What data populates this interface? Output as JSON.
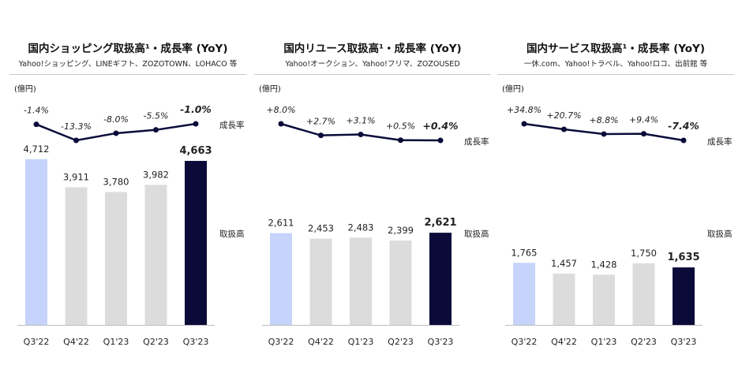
{
  "colors": {
    "bar_first": "#c6d3fb",
    "bar_mid": "#dcdcdc",
    "bar_last": "#0b0b3a",
    "line": "#0b0b3a",
    "axis": "#bdbdbd"
  },
  "chart_data": [
    {
      "type": "bar+line",
      "title": "国内ショッピング取扱高¹・成長率 (YoY)",
      "subtitle": "Yahoo!ショッピング、LINEギフト、ZOZOTOWN、LOHACO 等",
      "unit_label": "(億円)",
      "categories": [
        "Q3'22",
        "Q4'22",
        "Q1'23",
        "Q2'23",
        "Q3'23"
      ],
      "bar_series": {
        "name": "取扱高",
        "values": [
          4712,
          3911,
          3780,
          3982,
          4663
        ],
        "labels": [
          "4,712",
          "3,911",
          "3,780",
          "3,982",
          "4,663"
        ]
      },
      "line_series": {
        "name": "成長率",
        "values": [
          -1.4,
          -13.3,
          -8.0,
          -5.5,
          -1.0
        ],
        "labels": [
          "-1.4%",
          "-13.3%",
          "-8.0%",
          "-5.5%",
          "-1.0%"
        ]
      }
    },
    {
      "type": "bar+line",
      "title": "国内リユース取扱高¹・成長率 (YoY)",
      "subtitle": "Yahoo!オークション、Yahoo!フリマ、ZOZOUSED",
      "unit_label": "(億円)",
      "categories": [
        "Q3'22",
        "Q4'22",
        "Q1'23",
        "Q2'23",
        "Q3'23"
      ],
      "bar_series": {
        "name": "取扱高",
        "values": [
          2611,
          2453,
          2483,
          2399,
          2621
        ],
        "labels": [
          "2,611",
          "2,453",
          "2,483",
          "2,399",
          "2,621"
        ]
      },
      "line_series": {
        "name": "成長率",
        "values": [
          8.0,
          2.7,
          3.1,
          0.5,
          0.4
        ],
        "labels": [
          "+8.0%",
          "+2.7%",
          "+3.1%",
          "+0.5%",
          "+0.4%"
        ]
      }
    },
    {
      "type": "bar+line",
      "title": "国内サービス取扱高¹・成長率 (YoY)",
      "subtitle": "一休.com、Yahoo!トラベル、Yahoo!ロコ、出前館 等",
      "unit_label": "(億円)",
      "categories": [
        "Q3'22",
        "Q4'22",
        "Q1'23",
        "Q2'23",
        "Q3'23"
      ],
      "bar_series": {
        "name": "取扱高",
        "values": [
          1765,
          1457,
          1428,
          1750,
          1635
        ],
        "labels": [
          "1,765",
          "1,457",
          "1,428",
          "1,750",
          "1,635"
        ]
      },
      "line_series": {
        "name": "成長率",
        "values": [
          34.8,
          20.7,
          8.8,
          9.4,
          -7.4
        ],
        "labels": [
          "+34.8%",
          "+20.7%",
          "+8.8%",
          "+9.4%",
          "-7.4%"
        ]
      }
    }
  ]
}
